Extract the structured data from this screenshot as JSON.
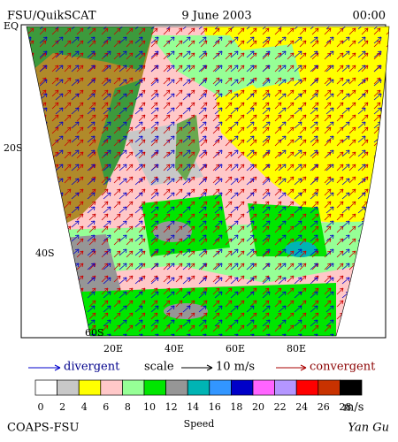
{
  "header": {
    "left": "FSU/QuikSCAT",
    "center": "9 June 2003",
    "right": "00:00"
  },
  "lat_labels": [
    "EQ",
    "20S",
    "40S",
    "60S"
  ],
  "lon_labels": [
    "20E",
    "40E",
    "60E",
    "80E"
  ],
  "legend": {
    "divergent": "divergent",
    "scale": "scale",
    "scale_value": "10 m/s",
    "convergent": "convergent"
  },
  "colorbar": {
    "labels": [
      "0",
      "2",
      "4",
      "6",
      "8",
      "10",
      "12",
      "14",
      "16",
      "18",
      "20",
      "22",
      "24",
      "26",
      "28"
    ],
    "unit": "m/s",
    "colors": [
      "#ffffff",
      "#c8c8c8",
      "#ffff00",
      "#ffc8c8",
      "#96ff96",
      "#00e600",
      "#969696",
      "#00b4b4",
      "#3296ff",
      "#0000c8",
      "#ff64ff",
      "#b496ff",
      "#ff0000",
      "#c83200",
      "#000000"
    ]
  },
  "footer": {
    "left": "COAPS-FSU",
    "center": "Speed",
    "right": "Yan Gu"
  }
}
